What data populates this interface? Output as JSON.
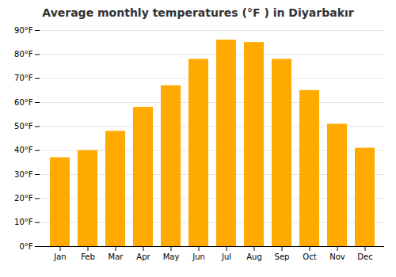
{
  "chart_data": {
    "type": "bar",
    "title": "Average monthly temperatures (°F ) in Diyarbakır",
    "categories": [
      "Jan",
      "Feb",
      "Mar",
      "Apr",
      "May",
      "Jun",
      "Jul",
      "Aug",
      "Sep",
      "Oct",
      "Nov",
      "Dec"
    ],
    "values": [
      37,
      40,
      48,
      58,
      67,
      78,
      86,
      85,
      78,
      65,
      51,
      41
    ],
    "color": "#FFAA00",
    "ylim": [
      0,
      90
    ],
    "yticks": [
      {
        "value": 0,
        "label": "0°F"
      },
      {
        "value": 10,
        "label": "10°F"
      },
      {
        "value": 20,
        "label": "20°F"
      },
      {
        "value": 30,
        "label": "30°F"
      },
      {
        "value": 40,
        "label": "40°F"
      },
      {
        "value": 50,
        "label": "50°F"
      },
      {
        "value": 60,
        "label": "60°F"
      },
      {
        "value": 70,
        "label": "70°F"
      },
      {
        "value": 80,
        "label": "80°F"
      },
      {
        "value": 90,
        "label": "90°F"
      }
    ],
    "grid": true
  }
}
